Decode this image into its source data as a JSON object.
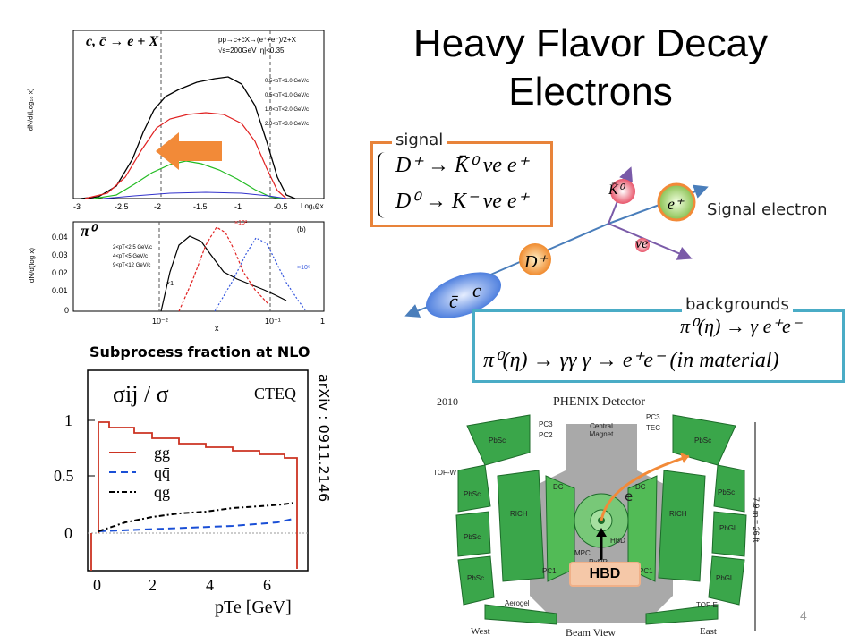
{
  "title": "Heavy Flavor Decay Electrons",
  "top_plot": {
    "formula": "c, c̄ → e + X",
    "process": "pp→c+c̄X→(e⁺+e⁻)/2+X",
    "energy": "√s=200GeV |η|<0.35",
    "legend": [
      "0.5<pT<1.0 GeV/c",
      "0.5<pT<1.0 GeV/c",
      "1.0<pT<2.0 GeV/c",
      "2.0<pT<3.0 GeV/c"
    ],
    "ylabel": "dN/d(Log₁₀ x)",
    "xlabel": "Log₁₀ x",
    "xticks": [
      "-3",
      "-2.5",
      "-2",
      "-1.5",
      "-1",
      "-0.5",
      "0"
    ]
  },
  "mid_plot": {
    "particle": "π⁰",
    "panel_tag": "(b)",
    "legend": [
      "2<pT<2.5 GeV/c",
      "4<pT<5 GeV/c",
      "9<pT<12 GeV/c"
    ],
    "ylabel": "dN/d(log x)",
    "xlabel": "x",
    "yticks": [
      "0.04",
      "0.03",
      "0.02",
      "0.01",
      "0"
    ],
    "xticks": [
      "10⁻²",
      "10⁻¹",
      "1"
    ],
    "scales": [
      "×1",
      "×10²",
      "×10⁵"
    ]
  },
  "subprocess": {
    "heading": "Subprocess fraction at NLO",
    "ratio_label": "σij / σ",
    "source": "CTEQ",
    "legend": [
      "gg",
      "qq̄",
      "qg"
    ],
    "yticks": [
      "1",
      "0.5",
      "0"
    ],
    "xticks": [
      "0",
      "2",
      "4",
      "6"
    ],
    "xlabel": "pTe [GeV]",
    "colors": {
      "gg": "#cc3322",
      "qq": "#1a4fd6",
      "qg": "#000000"
    }
  },
  "arxiv": "arXiv : 0911.2146",
  "signal": {
    "label": "signal",
    "line1": "D⁺ → K̄⁰ νe e⁺",
    "line2": "D⁰ → K⁻ νe e⁺",
    "border_color": "#e8833a"
  },
  "decay": {
    "c": "c",
    "cbar": "c̄",
    "D": "D⁺",
    "K": "K̄⁰",
    "nu": "νe",
    "e": "e⁺",
    "signal_electron": "Signal electron"
  },
  "backgrounds": {
    "label": "backgrounds",
    "line1": "π⁰(η) → γ e⁺e⁻",
    "line2": "π⁰(η) → γγ  γ → e⁺e⁻ (in material)",
    "border_color": "#4aacc6"
  },
  "detector": {
    "year": "2010",
    "title": "PHENIX Detector",
    "labels": [
      "PbSc",
      "PbSc",
      "PbSc",
      "PbSc",
      "PC3",
      "PC2",
      "PC3",
      "TEC",
      "Central Magnet",
      "DC",
      "DC",
      "RICH",
      "RICH",
      "TOF-W",
      "PbSc",
      "PbSc",
      "PbGl",
      "PbGl",
      "MPC",
      "HBD",
      "RxNP",
      "PC1",
      "PC1",
      "Aerogel",
      "TOF-E"
    ],
    "dimension": "7.9 m = 26 ft",
    "bottom": [
      "West",
      "Beam View",
      "East"
    ],
    "electron": "e",
    "hbd": "HBD"
  },
  "page_number": "4"
}
